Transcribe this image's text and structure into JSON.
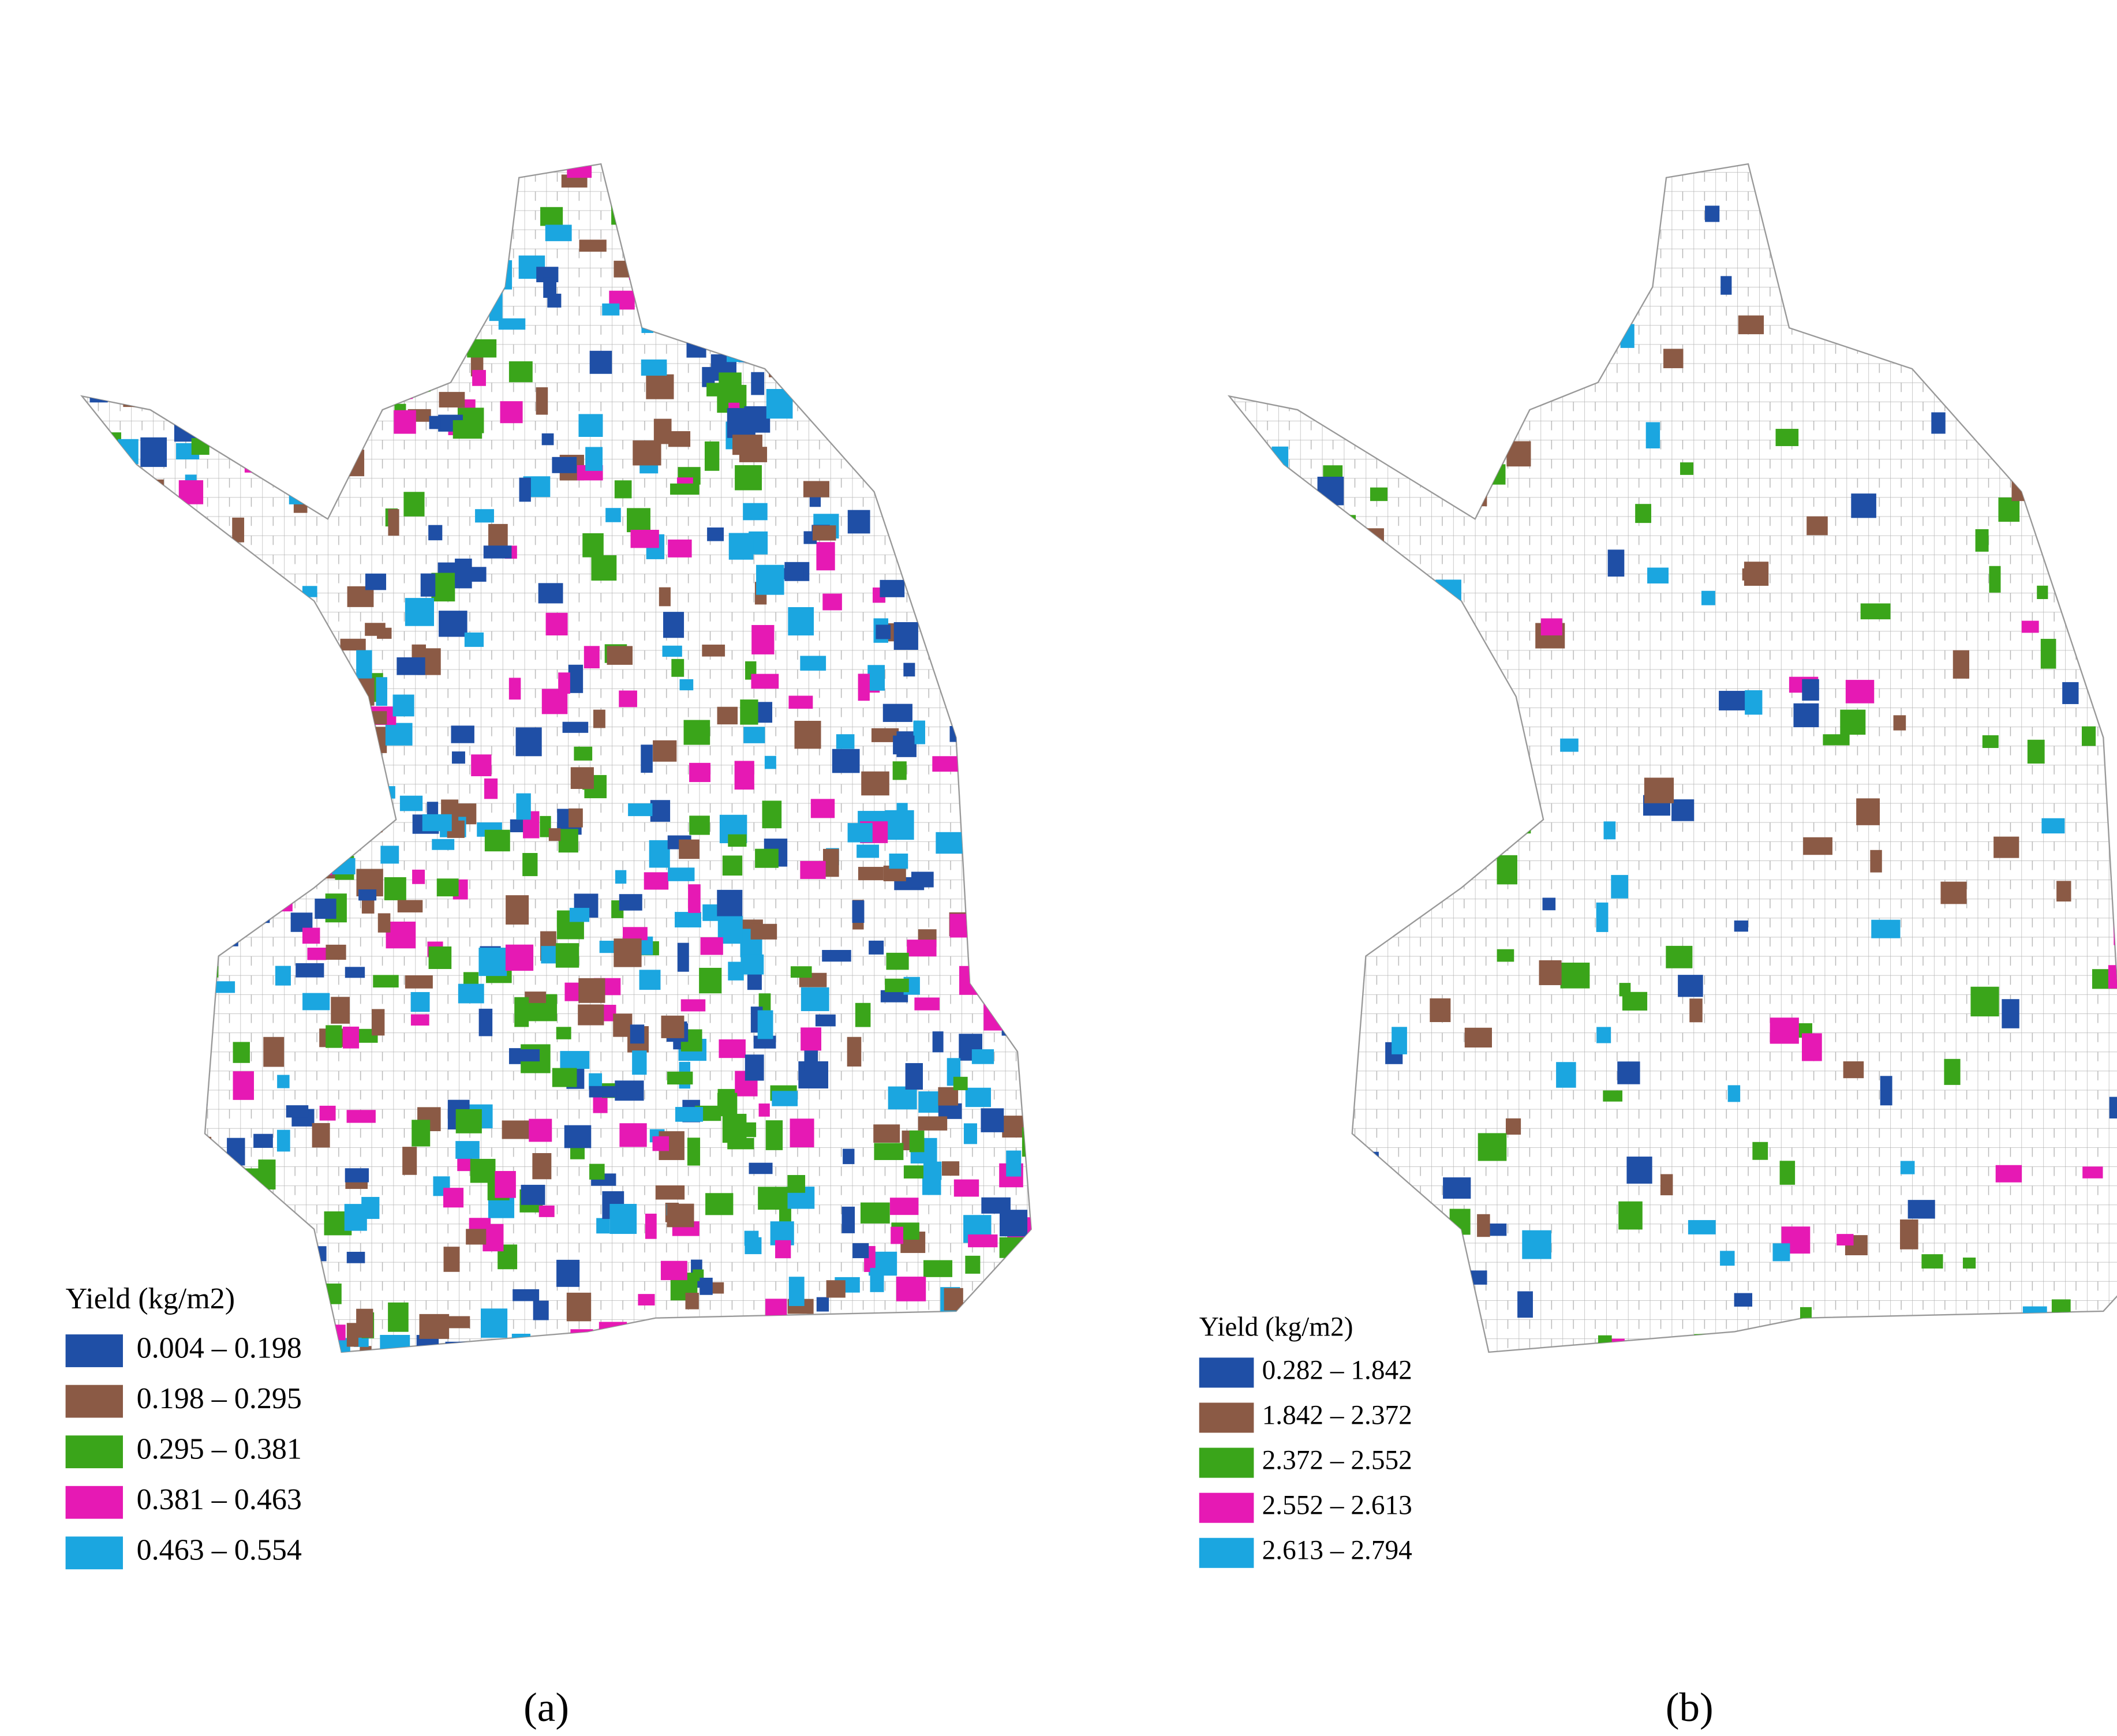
{
  "panels": [
    {
      "label": "(a)",
      "legend_title": "Yield (kg/m2)",
      "legend": [
        {
          "text": "0.004 – 0.198",
          "color": "#1f4fa6"
        },
        {
          "text": "0.198 – 0.295",
          "color": "#8b5a45"
        },
        {
          "text": "0.295 – 0.381",
          "color": "#3aa51a"
        },
        {
          "text": "0.381 – 0.463",
          "color": "#e619b4"
        },
        {
          "text": "0.463 – 0.554",
          "color": "#1ba6e0"
        }
      ]
    },
    {
      "label": "(b)",
      "legend_title": "Yield (kg/m2)",
      "legend": [
        {
          "text": "0.282 – 1.842",
          "color": "#1f4fa6"
        },
        {
          "text": "1.842 – 2.372",
          "color": "#8b5a45"
        },
        {
          "text": "2.372 – 2.552",
          "color": "#3aa51a"
        },
        {
          "text": "2.552 – 2.613",
          "color": "#e619b4"
        },
        {
          "text": "2.613 – 2.794",
          "color": "#1ba6e0"
        }
      ]
    }
  ]
}
